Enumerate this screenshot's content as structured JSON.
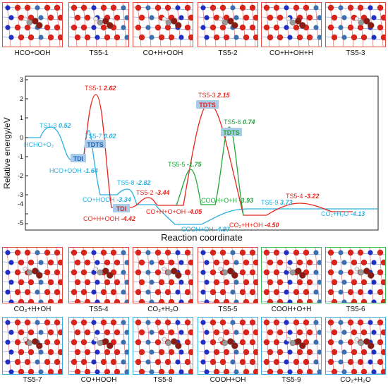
{
  "top_row": {
    "captions": [
      "HCO+OOH",
      "TS5-1",
      "CO+H+OOH",
      "TS5-2",
      "CO+H+OH+H",
      "TS5-3"
    ]
  },
  "middle_row": {
    "captions": [
      "CO₂+H+OH",
      "TS5-4",
      "CO₂+H₂O",
      "TS5-5",
      "COOH+O+H",
      "TS5-6"
    ]
  },
  "bottom_row": {
    "captions": [
      "TS5-7",
      "CO+HOOH",
      "TS5-8",
      "COOH+OH",
      "TS5-9",
      "CO₂+H₂O"
    ]
  },
  "colors": {
    "red_path": "#e8231b",
    "cyan_path": "#27b0e0",
    "green_path": "#22a63a",
    "label_box": "#a9cbe8"
  },
  "diagram": {
    "y_axis_label": "Relative energy/eV",
    "x_axis_label": "Reaction coordinate",
    "y_ticks": [
      "3",
      "2",
      "1",
      "0",
      "-1",
      "-2",
      "-3",
      "-4",
      "-5"
    ],
    "badges": {
      "tdi_1": "TDI",
      "tdi_2": "TDI",
      "tdts_1": "TDTS",
      "tdts_2": "TDTS",
      "tdts_3": "TDTS"
    },
    "labels": {
      "ts5_1_name": "TS5-1",
      "ts5_1_val": "2.62",
      "ts1_3_name": "TS1-3",
      "ts1_3_val": "0.52",
      "hcho_o2": "HCHO+O₂",
      "ts5_7_name": "TS5-7",
      "ts5_7_val": "0.02",
      "hco_ooh_name": "HCO+OOH",
      "hco_ooh_val": "-1.64",
      "ts5_3_name": "TS5-3",
      "ts5_3_val": "2.15",
      "ts5_6_name": "TS5-6",
      "ts5_6_val": "0.74",
      "ts5_5_name": "TS5-5",
      "ts5_5_val": "-1.75",
      "ts5_8_name": "TS5-8",
      "ts5_8_val": "-2.82",
      "co_hooh_name": "CO+HOOH",
      "co_hooh_val": "-3.34",
      "ts5_2_name": "TS5-2",
      "ts5_2_val": "-3.44",
      "cooh_o_h_name": "COOH+O+H",
      "cooh_o_h_val": "-3.93",
      "co_h_o_oh_name": "CO+H+O+OH",
      "co_h_o_oh_val": "-4.05",
      "co_h_ooh_name": "CO+H+OOH",
      "co_h_ooh_val": "-4.42",
      "ts5_4_name": "TS5-4",
      "ts5_4_val": "-3.22",
      "ts5_9_name": "TS5-9",
      "ts5_9_val": "3.73",
      "co2_h_oh_name": "CO₂+H+OH",
      "co2_h_oh_val": "-4.50",
      "co2_h2o_name": "CO₂+H₂O",
      "co2_h2o_val": "-4.13",
      "cooh_oh_name": "COOH+OH",
      "cooh_oh_val": "-4.97"
    }
  }
}
